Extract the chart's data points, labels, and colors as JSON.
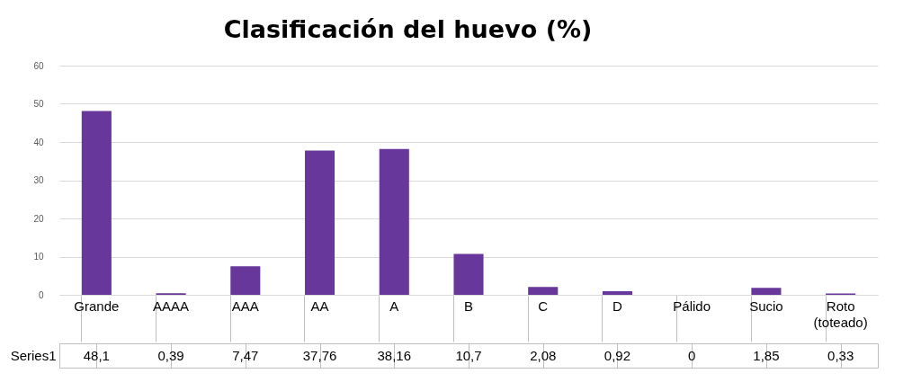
{
  "chart_data": {
    "type": "bar",
    "title": "Clasificación del huevo (%)",
    "categories": [
      "Grande",
      "AAAA",
      "AAA",
      "AA",
      "A",
      "B",
      "C",
      "D",
      "Pálido",
      "Sucio",
      "Roto (toteado)"
    ],
    "series": [
      {
        "name": "Series1",
        "color": "#67379b",
        "values": [
          48.1,
          0.39,
          7.47,
          37.76,
          38.16,
          10.7,
          2.08,
          0.92,
          0,
          1.85,
          0.33
        ],
        "value_labels": [
          "48,1",
          "0,39",
          "7,47",
          "37,76",
          "38,16",
          "10,7",
          "2,08",
          "0,92",
          "0",
          "1,85",
          "0,33"
        ]
      }
    ],
    "ylim": [
      0,
      60
    ],
    "yticks": [
      0,
      10,
      20,
      30,
      40,
      50,
      60
    ],
    "grid": "y"
  }
}
